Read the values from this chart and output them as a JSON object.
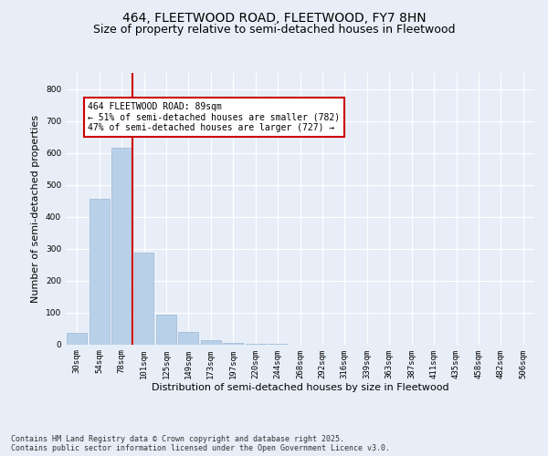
{
  "title1": "464, FLEETWOOD ROAD, FLEETWOOD, FY7 8HN",
  "title2": "Size of property relative to semi-detached houses in Fleetwood",
  "xlabel": "Distribution of semi-detached houses by size in Fleetwood",
  "ylabel": "Number of semi-detached properties",
  "categories": [
    "30sqm",
    "54sqm",
    "78sqm",
    "101sqm",
    "125sqm",
    "149sqm",
    "173sqm",
    "197sqm",
    "220sqm",
    "244sqm",
    "268sqm",
    "292sqm",
    "316sqm",
    "339sqm",
    "363sqm",
    "387sqm",
    "411sqm",
    "435sqm",
    "458sqm",
    "482sqm",
    "506sqm"
  ],
  "values": [
    35,
    455,
    615,
    288,
    92,
    38,
    12,
    5,
    2,
    1,
    0,
    0,
    0,
    0,
    0,
    0,
    0,
    0,
    0,
    0,
    0
  ],
  "bar_color": "#b8d0e8",
  "bar_edge_color": "#9ab8d4",
  "vline_x": 2.5,
  "vline_color": "#cc0000",
  "annotation_text": "464 FLEETWOOD ROAD: 89sqm\n← 51% of semi-detached houses are smaller (782)\n47% of semi-detached houses are larger (727) →",
  "annotation_box_color": "#ffffff",
  "annotation_box_edge": "#cc0000",
  "ylim": [
    0,
    850
  ],
  "yticks": [
    0,
    100,
    200,
    300,
    400,
    500,
    600,
    700,
    800
  ],
  "footnote1": "Contains HM Land Registry data © Crown copyright and database right 2025.",
  "footnote2": "Contains public sector information licensed under the Open Government Licence v3.0.",
  "bg_color": "#e8eef8",
  "plot_bg_color": "#e8eef8",
  "grid_color": "#ffffff",
  "title1_fontsize": 10,
  "title2_fontsize": 9,
  "axis_fontsize": 8,
  "tick_fontsize": 6.5
}
